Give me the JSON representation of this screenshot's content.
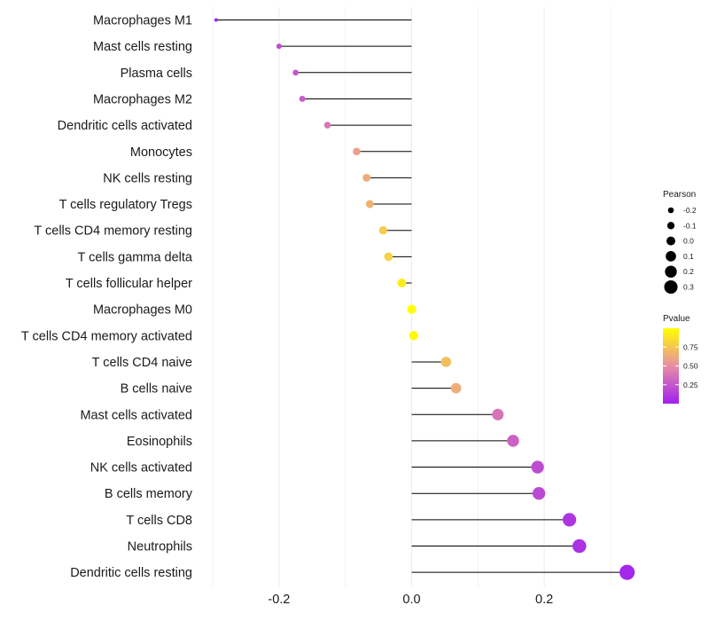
{
  "chart_data": {
    "type": "lollipop",
    "title": "",
    "xlabel": "",
    "ylabel": "",
    "xlim": [
      -0.3,
      0.33
    ],
    "xticks": [
      -0.2,
      0.0,
      0.2
    ],
    "xtick_labels": [
      "-0.2",
      "0.0",
      "0.2"
    ],
    "grid": true,
    "points": [
      {
        "label": "Macrophages M1",
        "pearson": -0.295,
        "pvalue": 0.02
      },
      {
        "label": "Mast cells resting",
        "pearson": -0.2,
        "pvalue": 0.2
      },
      {
        "label": "Plasma cells",
        "pearson": -0.175,
        "pvalue": 0.25
      },
      {
        "label": "Macrophages M2",
        "pearson": -0.165,
        "pvalue": 0.28
      },
      {
        "label": "Dendritic cells activated",
        "pearson": -0.127,
        "pvalue": 0.4
      },
      {
        "label": "Monocytes",
        "pearson": -0.083,
        "pvalue": 0.58
      },
      {
        "label": "NK cells resting",
        "pearson": -0.068,
        "pvalue": 0.63
      },
      {
        "label": "T cells regulatory  Tregs ",
        "pearson": -0.063,
        "pvalue": 0.66
      },
      {
        "label": "T cells CD4 memory resting",
        "pearson": -0.043,
        "pvalue": 0.77
      },
      {
        "label": "T cells gamma delta",
        "pearson": -0.035,
        "pvalue": 0.8
      },
      {
        "label": "T cells follicular helper",
        "pearson": -0.015,
        "pvalue": 0.92
      },
      {
        "label": "Macrophages M0",
        "pearson": 0.0,
        "pvalue": 0.99
      },
      {
        "label": "T cells CD4 memory activated",
        "pearson": 0.003,
        "pvalue": 0.98
      },
      {
        "label": "T cells CD4 naive",
        "pearson": 0.052,
        "pvalue": 0.72
      },
      {
        "label": "B cells naive",
        "pearson": 0.067,
        "pvalue": 0.64
      },
      {
        "label": "Mast cells activated",
        "pearson": 0.13,
        "pvalue": 0.38
      },
      {
        "label": "Eosinophils",
        "pearson": 0.153,
        "pvalue": 0.3
      },
      {
        "label": "NK cells activated",
        "pearson": 0.19,
        "pvalue": 0.2
      },
      {
        "label": "B cells memory",
        "pearson": 0.192,
        "pvalue": 0.19
      },
      {
        "label": "T cells CD8",
        "pearson": 0.238,
        "pvalue": 0.1
      },
      {
        "label": "Neutrophils",
        "pearson": 0.253,
        "pvalue": 0.08
      },
      {
        "label": "Dendritic cells resting",
        "pearson": 0.325,
        "pvalue": 0.03
      }
    ],
    "legend_size": {
      "title": "Pearson",
      "values": [
        -0.2,
        -0.1,
        0.0,
        0.1,
        0.2,
        0.3
      ],
      "labels": [
        "-0.2",
        "-0.1",
        "0.0",
        "0.1",
        "0.2",
        "0.3"
      ]
    },
    "legend_color": {
      "title": "Pvalue",
      "values": [
        0.75,
        0.5,
        0.25
      ],
      "labels": [
        "0.75",
        "0.50",
        "0.25"
      ],
      "range": [
        0.0,
        1.0
      ],
      "low_color": "#a020f0",
      "high_color": "#ffff00"
    },
    "legend_position": "right"
  }
}
